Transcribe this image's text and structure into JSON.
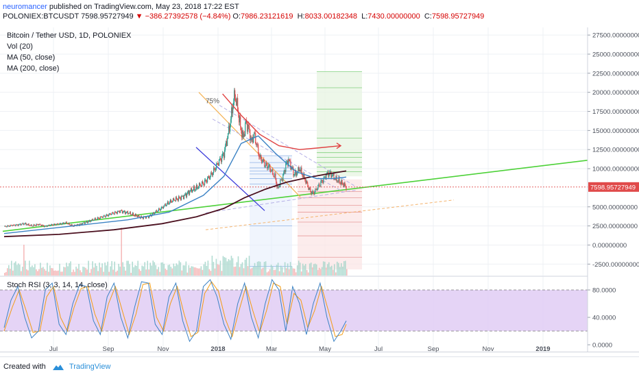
{
  "header": {
    "publisher": "neuromancer",
    "published_text": "published on TradingView.com, May 23, 2018 17:22 EST",
    "symbol": "POLONIEX:BTCUSDT",
    "price": "7598.95727949",
    "change": "▼ −386.27392578 (−4.84%)",
    "open_label": "O:",
    "open": "7986.23121619",
    "high_label": "H:",
    "high": "8033.00182348",
    "low_label": "L:",
    "low": "7430.00000000",
    "close_label": "C:",
    "close": "7598.95727949"
  },
  "legend": {
    "title": "Bitcoin / Tether USD, 1D, POLONIEX",
    "vol": "Vol (20)",
    "ma50": "MA (50, close)",
    "ma200": "MA (200, close)",
    "rsi": "Stoch RSI (3, 3, 14, 14, close)",
    "fib_label": "75%"
  },
  "footer": {
    "created_with": "Created with",
    "brand": "TradingView"
  },
  "colors": {
    "candle_up": "#2a9d8f",
    "candle_down": "#e04a4a",
    "ma50": "#3b82c4",
    "ma200": "#4a0f1e",
    "trend": "#4cd137",
    "forecast": "#e04040",
    "rsi_k": "#3b82c4",
    "rsi_d": "#f39c12",
    "rsi_band": "#e1ccf5",
    "price_badge": "#e04a4a"
  },
  "chart_data": {
    "type": "candlestick",
    "symbol": "POLONIEX:BTCUSDT",
    "timeframe": "1D",
    "x_tick_labels": [
      "Jul",
      "Sep",
      "Nov",
      "2018",
      "Mar",
      "May",
      "Jul",
      "Sep",
      "Nov",
      "2019"
    ],
    "price_axis": {
      "ticks": [
        "27500.00000000",
        "25000.00000000",
        "22500.00000000",
        "20000.00000000",
        "17500.00000000",
        "15000.00000000",
        "12500.00000000",
        "10000.00000000",
        "5000.00000000",
        "2500.00000000",
        "0.00000000",
        "-2500.00000000"
      ],
      "range": [
        -4000,
        28500
      ],
      "last_price_label": "7598.95727949"
    },
    "rsi_axis": {
      "ticks": [
        "80.0000",
        "40.0000",
        "0.0000"
      ],
      "range": [
        -10,
        100
      ],
      "bands": [
        80,
        20
      ]
    },
    "price_path": [
      [
        0,
        2400
      ],
      [
        10,
        2550
      ],
      [
        20,
        2650
      ],
      [
        30,
        2800
      ],
      [
        40,
        2500
      ],
      [
        50,
        2700
      ],
      [
        60,
        2450
      ],
      [
        70,
        2650
      ],
      [
        80,
        2750
      ],
      [
        90,
        2900
      ],
      [
        100,
        2500
      ],
      [
        110,
        2700
      ],
      [
        120,
        3000
      ],
      [
        130,
        3300
      ],
      [
        140,
        3600
      ],
      [
        150,
        3900
      ],
      [
        160,
        4200
      ],
      [
        170,
        4450
      ],
      [
        180,
        4200
      ],
      [
        190,
        3900
      ],
      [
        200,
        3600
      ],
      [
        210,
        3700
      ],
      [
        220,
        4300
      ],
      [
        230,
        4900
      ],
      [
        240,
        5600
      ],
      [
        250,
        6000
      ],
      [
        260,
        6300
      ],
      [
        270,
        7000
      ],
      [
        280,
        7500
      ],
      [
        290,
        8100
      ],
      [
        300,
        9000
      ],
      [
        310,
        10500
      ],
      [
        320,
        12000
      ],
      [
        325,
        14000
      ],
      [
        330,
        16500
      ],
      [
        333,
        18500
      ],
      [
        336,
        19600
      ],
      [
        340,
        17800
      ],
      [
        344,
        15500
      ],
      [
        348,
        14000
      ],
      [
        352,
        16000
      ],
      [
        356,
        15300
      ],
      [
        360,
        13500
      ],
      [
        364,
        14500
      ],
      [
        368,
        13000
      ],
      [
        372,
        11500
      ],
      [
        376,
        11000
      ],
      [
        380,
        10500
      ],
      [
        385,
        10300
      ],
      [
        390,
        9500
      ],
      [
        395,
        8800
      ],
      [
        398,
        7300
      ],
      [
        402,
        8200
      ],
      [
        406,
        9000
      ],
      [
        410,
        10500
      ],
      [
        414,
        11100
      ],
      [
        418,
        10200
      ],
      [
        422,
        9300
      ],
      [
        426,
        9400
      ],
      [
        430,
        10000
      ],
      [
        434,
        9300
      ],
      [
        438,
        8600
      ],
      [
        442,
        7700
      ],
      [
        446,
        7000
      ],
      [
        450,
        6800
      ],
      [
        454,
        7200
      ],
      [
        458,
        7800
      ],
      [
        462,
        8300
      ],
      [
        466,
        8700
      ],
      [
        470,
        9300
      ],
      [
        474,
        9400
      ],
      [
        478,
        9100
      ],
      [
        482,
        8600
      ],
      [
        486,
        8500
      ],
      [
        490,
        8200
      ],
      [
        494,
        7900
      ],
      [
        498,
        7598
      ]
    ],
    "ma50_path": [
      [
        0,
        1500
      ],
      [
        60,
        2100
      ],
      [
        120,
        2700
      ],
      [
        180,
        3300
      ],
      [
        240,
        4300
      ],
      [
        290,
        6500
      ],
      [
        320,
        9000
      ],
      [
        345,
        13300
      ],
      [
        370,
        14300
      ],
      [
        395,
        12000
      ],
      [
        425,
        9600
      ],
      [
        455,
        8700
      ],
      [
        480,
        8700
      ],
      [
        498,
        8900
      ]
    ],
    "ma200_path": [
      [
        0,
        1100
      ],
      [
        80,
        1400
      ],
      [
        160,
        2000
      ],
      [
        230,
        2800
      ],
      [
        280,
        3700
      ],
      [
        320,
        4800
      ],
      [
        350,
        6200
      ],
      [
        380,
        7300
      ],
      [
        410,
        8200
      ],
      [
        440,
        8800
      ],
      [
        470,
        9300
      ],
      [
        498,
        9700
      ]
    ],
    "forecast_path": [
      [
        318,
        19800
      ],
      [
        345,
        17000
      ],
      [
        372,
        14500
      ],
      [
        400,
        13000
      ],
      [
        430,
        12500
      ],
      [
        455,
        12700
      ],
      [
        490,
        13000
      ]
    ],
    "rsi_k": [
      [
        0,
        25
      ],
      [
        10,
        65
      ],
      [
        20,
        85
      ],
      [
        30,
        40
      ],
      [
        40,
        10
      ],
      [
        50,
        20
      ],
      [
        60,
        80
      ],
      [
        70,
        90
      ],
      [
        80,
        30
      ],
      [
        90,
        15
      ],
      [
        100,
        60
      ],
      [
        110,
        88
      ],
      [
        120,
        85
      ],
      [
        130,
        35
      ],
      [
        140,
        15
      ],
      [
        150,
        70
      ],
      [
        160,
        90
      ],
      [
        170,
        40
      ],
      [
        180,
        10
      ],
      [
        190,
        55
      ],
      [
        200,
        92
      ],
      [
        210,
        90
      ],
      [
        220,
        30
      ],
      [
        230,
        15
      ],
      [
        240,
        70
      ],
      [
        250,
        90
      ],
      [
        260,
        35
      ],
      [
        270,
        5
      ],
      [
        280,
        20
      ],
      [
        290,
        85
      ],
      [
        300,
        95
      ],
      [
        310,
        70
      ],
      [
        320,
        30
      ],
      [
        330,
        8
      ],
      [
        340,
        60
      ],
      [
        350,
        90
      ],
      [
        360,
        40
      ],
      [
        370,
        10
      ],
      [
        380,
        60
      ],
      [
        390,
        95
      ],
      [
        400,
        80
      ],
      [
        410,
        20
      ],
      [
        420,
        85
      ],
      [
        430,
        60
      ],
      [
        440,
        15
      ],
      [
        450,
        60
      ],
      [
        460,
        90
      ],
      [
        470,
        40
      ],
      [
        480,
        5
      ],
      [
        490,
        20
      ],
      [
        498,
        35
      ]
    ],
    "rsi_d": [
      [
        0,
        20
      ],
      [
        12,
        55
      ],
      [
        22,
        80
      ],
      [
        32,
        50
      ],
      [
        42,
        18
      ],
      [
        52,
        20
      ],
      [
        62,
        70
      ],
      [
        72,
        85
      ],
      [
        82,
        40
      ],
      [
        92,
        20
      ],
      [
        102,
        55
      ],
      [
        112,
        82
      ],
      [
        122,
        85
      ],
      [
        132,
        45
      ],
      [
        142,
        20
      ],
      [
        152,
        60
      ],
      [
        162,
        85
      ],
      [
        172,
        50
      ],
      [
        182,
        15
      ],
      [
        192,
        45
      ],
      [
        202,
        88
      ],
      [
        212,
        90
      ],
      [
        222,
        40
      ],
      [
        232,
        20
      ],
      [
        242,
        60
      ],
      [
        252,
        85
      ],
      [
        262,
        45
      ],
      [
        272,
        12
      ],
      [
        282,
        18
      ],
      [
        292,
        75
      ],
      [
        302,
        92
      ],
      [
        312,
        78
      ],
      [
        322,
        38
      ],
      [
        332,
        12
      ],
      [
        342,
        50
      ],
      [
        352,
        85
      ],
      [
        362,
        50
      ],
      [
        372,
        18
      ],
      [
        382,
        50
      ],
      [
        392,
        90
      ],
      [
        402,
        85
      ],
      [
        412,
        30
      ],
      [
        422,
        75
      ],
      [
        432,
        65
      ],
      [
        442,
        25
      ],
      [
        452,
        50
      ],
      [
        462,
        85
      ],
      [
        472,
        50
      ],
      [
        482,
        12
      ],
      [
        492,
        15
      ],
      [
        498,
        30
      ]
    ]
  }
}
